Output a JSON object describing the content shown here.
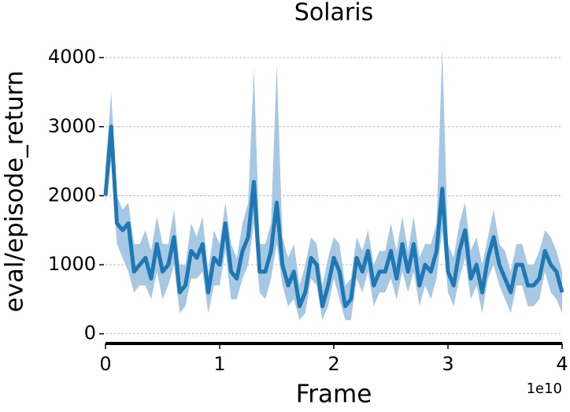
{
  "chart_data": {
    "type": "line",
    "title": "Solaris",
    "x_label": "Frame",
    "y_label": "eval/episode_return",
    "x_offset_label": "1e10",
    "color": "#1f77b4",
    "band_color": "#a6c8e3",
    "grid": true,
    "xlim": [
      0,
      40000000000.0
    ],
    "xticks": [
      0,
      {
        "value": 10000000000.0,
        "label": "1"
      },
      {
        "value": 20000000000.0,
        "label": "2"
      },
      {
        "value": 30000000000.0,
        "label": "3"
      },
      {
        "value": 40000000000.0,
        "label": "4"
      }
    ],
    "ylim": [
      -140,
      4150
    ],
    "yticks": [
      0,
      1000,
      2000,
      3000,
      4000
    ],
    "x": [
      0,
      500000000.0,
      1000000000.0,
      1500000000.0,
      2000000000.0,
      2500000000.0,
      3000000000.0,
      3500000000.0,
      4000000000.0,
      4500000000.0,
      5000000000.0,
      5500000000.0,
      6000000000.0,
      6500000000.0,
      7000000000.0,
      7500000000.0,
      8000000000.0,
      8500000000.0,
      9000000000.0,
      9500000000.0,
      10000000000.0,
      10500000000.0,
      11000000000.0,
      11500000000.0,
      12000000000.0,
      12500000000.0,
      13000000000.0,
      13500000000.0,
      14000000000.0,
      14500000000.0,
      15000000000.0,
      15500000000.0,
      16000000000.0,
      16500000000.0,
      17000000000.0,
      17500000000.0,
      18000000000.0,
      18500000000.0,
      19000000000.0,
      19500000000.0,
      20000000000.0,
      20500000000.0,
      21000000000.0,
      21500000000.0,
      22000000000.0,
      22500000000.0,
      23000000000.0,
      23500000000.0,
      24000000000.0,
      24500000000.0,
      25000000000.0,
      25500000000.0,
      26000000000.0,
      26500000000.0,
      27000000000.0,
      27500000000.0,
      28000000000.0,
      28500000000.0,
      29000000000.0,
      29500000000.0,
      30000000000.0,
      30500000000.0,
      31000000000.0,
      31500000000.0,
      32000000000.0,
      32500000000.0,
      33000000000.0,
      33500000000.0,
      34000000000.0,
      34500000000.0,
      35000000000.0,
      35500000000.0,
      36000000000.0,
      36500000000.0,
      37000000000.0,
      37500000000.0,
      38000000000.0,
      38500000000.0,
      39000000000.0,
      39500000000.0,
      40000000000.0
    ],
    "values": [
      2000,
      3000,
      1600,
      1500,
      1600,
      900,
      1000,
      1100,
      800,
      1300,
      900,
      1000,
      1400,
      600,
      700,
      1200,
      1100,
      1300,
      600,
      1100,
      1000,
      1600,
      900,
      800,
      1200,
      1400,
      2200,
      900,
      900,
      1200,
      1900,
      1000,
      700,
      900,
      400,
      600,
      1100,
      1000,
      400,
      700,
      1100,
      900,
      400,
      500,
      1100,
      900,
      1200,
      700,
      900,
      900,
      1200,
      800,
      1300,
      900,
      1300,
      700,
      1000,
      900,
      1200,
      2100,
      900,
      700,
      1200,
      1500,
      800,
      1000,
      600,
      1100,
      1400,
      1000,
      800,
      600,
      1000,
      1000,
      700,
      700,
      800,
      1200,
      1000,
      900,
      600
    ],
    "lower": [
      1900,
      2500,
      1300,
      1100,
      900,
      600,
      700,
      700,
      500,
      900,
      500,
      700,
      1000,
      300,
      400,
      800,
      800,
      900,
      300,
      700,
      700,
      1200,
      500,
      500,
      800,
      1000,
      1600,
      600,
      500,
      800,
      1300,
      700,
      400,
      500,
      200,
      300,
      800,
      700,
      200,
      400,
      800,
      500,
      200,
      200,
      800,
      600,
      900,
      400,
      600,
      600,
      800,
      500,
      900,
      600,
      900,
      400,
      700,
      500,
      800,
      1500,
      600,
      400,
      800,
      1100,
      500,
      700,
      300,
      800,
      1000,
      700,
      500,
      300,
      700,
      700,
      400,
      400,
      500,
      900,
      600,
      500,
      300
    ],
    "upper": [
      2400,
      3500,
      2000,
      1800,
      1900,
      1300,
      1300,
      1500,
      1200,
      1700,
      1300,
      1300,
      1800,
      1000,
      1000,
      1600,
      1400,
      1700,
      900,
      1500,
      1300,
      1900,
      1300,
      1100,
      1600,
      1900,
      3850,
      1300,
      1300,
      1600,
      3900,
      1400,
      1100,
      1300,
      700,
      1000,
      1400,
      1300,
      700,
      1100,
      1400,
      1300,
      700,
      800,
      1400,
      1200,
      1500,
      1000,
      1200,
      1200,
      1600,
      1200,
      1700,
      1200,
      1700,
      1100,
      1300,
      1300,
      1600,
      4150,
      1300,
      1100,
      1600,
      1900,
      1200,
      1400,
      1000,
      1400,
      1800,
      1300,
      1200,
      900,
      1300,
      1300,
      1000,
      1000,
      1200,
      1500,
      1400,
      1200,
      900
    ]
  }
}
